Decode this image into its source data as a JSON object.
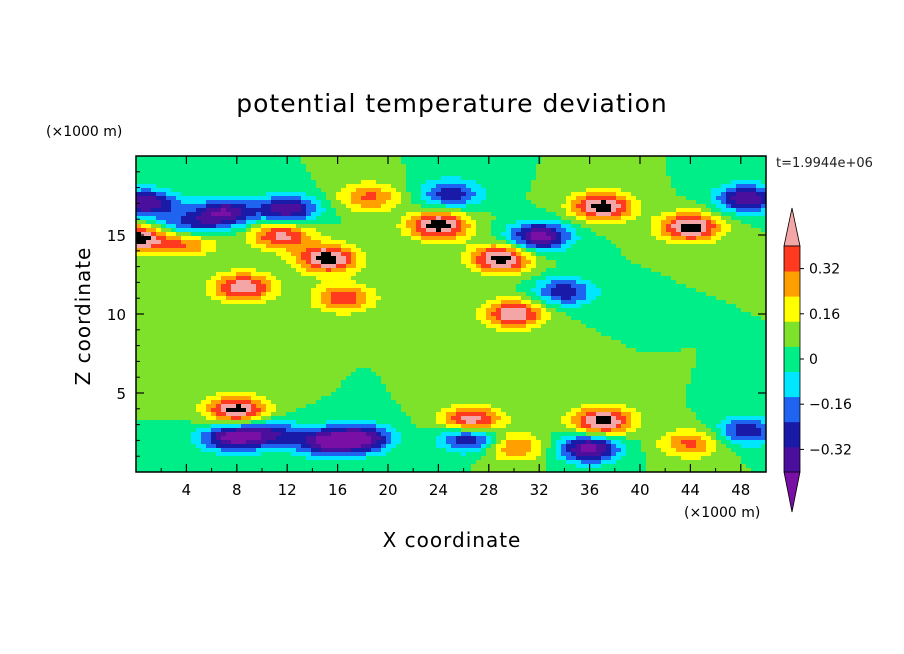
{
  "chart_data": {
    "type": "heatmap",
    "title": "potential temperature deviation",
    "xlabel": "X coordinate",
    "ylabel": "Z coordinate",
    "x_unit": "(×1000 m)",
    "y_unit": "(×1000 m)",
    "timestamp": "t=1.9944e+06",
    "xlim": [
      0,
      50
    ],
    "ylim": [
      0,
      20
    ],
    "x_ticks": [
      4,
      8,
      12,
      16,
      20,
      24,
      28,
      32,
      36,
      40,
      44,
      48
    ],
    "y_ticks": [
      5,
      10,
      15
    ],
    "colorbar": {
      "levels": [
        -0.4,
        -0.32,
        -0.24,
        -0.16,
        -0.08,
        0,
        0.08,
        0.16,
        0.24,
        0.32,
        0.4
      ],
      "tick_values": [
        0.32,
        0.16,
        0,
        -0.16,
        -0.32
      ],
      "tick_labels": [
        "0.32",
        "0.16",
        "0",
        "−0.16",
        "−0.32"
      ],
      "colors": [
        "#7a0fa6",
        "#4b0f9e",
        "#1a1aa8",
        "#1e64f0",
        "#00e6ff",
        "#00ee88",
        "#7ee22a",
        "#ffff00",
        "#ffa000",
        "#ff3a1e",
        "#f4a6a6"
      ],
      "extend": "both"
    },
    "features": [
      {
        "x": 0.05,
        "z": 14.8,
        "value": 0.45
      },
      {
        "x": 0.8,
        "z": 17,
        "value": -0.4
      },
      {
        "x": 7,
        "z": 16.4,
        "value": -0.4
      },
      {
        "x": 12,
        "z": 16.6,
        "value": -0.4
      },
      {
        "x": 4,
        "z": 15.5,
        "value": -0.3
      },
      {
        "x": 4,
        "z": 14.6,
        "value": 0.3
      },
      {
        "x": 11.5,
        "z": 15,
        "value": 0.36
      },
      {
        "x": 15.2,
        "z": 13.5,
        "value": 0.45
      },
      {
        "x": 18.5,
        "z": 17.4,
        "value": 0.26
      },
      {
        "x": 24,
        "z": 15.6,
        "value": 0.45
      },
      {
        "x": 25,
        "z": 17.6,
        "value": -0.3
      },
      {
        "x": 29,
        "z": 13.5,
        "value": 0.45
      },
      {
        "x": 32,
        "z": 14.9,
        "value": -0.45
      },
      {
        "x": 37,
        "z": 16.8,
        "value": 0.45
      },
      {
        "x": 44,
        "z": 15.5,
        "value": 0.45
      },
      {
        "x": 48.5,
        "z": 17.3,
        "value": -0.4
      },
      {
        "x": 8.5,
        "z": 11.7,
        "value": 0.4
      },
      {
        "x": 16.5,
        "z": 11,
        "value": 0.3
      },
      {
        "x": 30,
        "z": 10,
        "value": 0.4
      },
      {
        "x": 34,
        "z": 11.4,
        "value": -0.3
      },
      {
        "x": 8,
        "z": 3.9,
        "value": 0.45
      },
      {
        "x": 7.5,
        "z": 2.2,
        "value": -0.4
      },
      {
        "x": 10.5,
        "z": 2.4,
        "value": -0.3
      },
      {
        "x": 15,
        "z": 1.9,
        "value": -0.4
      },
      {
        "x": 18,
        "z": 2.1,
        "value": -0.4
      },
      {
        "x": 26.6,
        "z": 3.2,
        "value": 0.45
      },
      {
        "x": 26.5,
        "z": 2.2,
        "value": -0.4
      },
      {
        "x": 30,
        "z": 1.6,
        "value": 0.26
      },
      {
        "x": 36,
        "z": 1.5,
        "value": -0.45
      },
      {
        "x": 37,
        "z": 3.2,
        "value": 0.45
      },
      {
        "x": 44,
        "z": 1.8,
        "value": 0.26
      },
      {
        "x": 48.5,
        "z": 2.6,
        "value": -0.3
      }
    ]
  }
}
